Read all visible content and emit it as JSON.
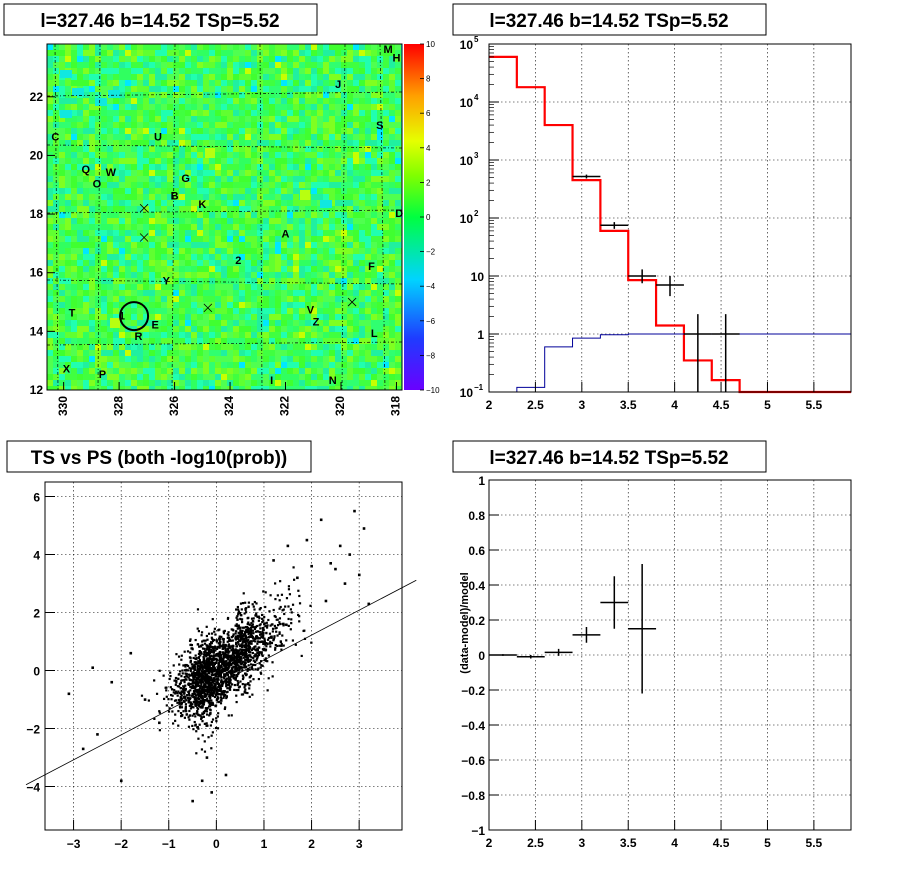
{
  "chart_data": [
    {
      "type": "heatmap",
      "title": "l=327.46 b=14.52 TSp=5.52",
      "xlim": [
        330.6,
        317.8
      ],
      "ylim": [
        12.0,
        23.8
      ],
      "x_ticks": [
        "330",
        "328",
        "326",
        "324",
        "322",
        "320",
        "318"
      ],
      "y_ticks": [
        "12",
        "14",
        "16",
        "18",
        "20",
        "22"
      ],
      "colorbar": {
        "min": -10,
        "max": 10,
        "ticks": [
          "10",
          "8",
          "6",
          "4",
          "2",
          "0",
          "−2",
          "−4",
          "−6",
          "−8",
          "−10"
        ]
      },
      "source_labels": [
        {
          "text": "M",
          "x": 318.3,
          "y": 23.6
        },
        {
          "text": "H",
          "x": 318.0,
          "y": 23.3
        },
        {
          "text": "J",
          "x": 320.1,
          "y": 22.4
        },
        {
          "text": "S",
          "x": 318.6,
          "y": 21.0
        },
        {
          "text": "C",
          "x": 330.3,
          "y": 20.6
        },
        {
          "text": "U",
          "x": 326.6,
          "y": 20.6
        },
        {
          "text": "Q",
          "x": 329.2,
          "y": 19.5
        },
        {
          "text": "W",
          "x": 328.3,
          "y": 19.4
        },
        {
          "text": "G",
          "x": 325.6,
          "y": 19.2
        },
        {
          "text": "O",
          "x": 328.8,
          "y": 19.0
        },
        {
          "text": "B",
          "x": 326.0,
          "y": 18.6
        },
        {
          "text": "K",
          "x": 325.0,
          "y": 18.3
        },
        {
          "text": "D",
          "x": 317.9,
          "y": 18.0
        },
        {
          "text": "A",
          "x": 322.0,
          "y": 17.3
        },
        {
          "text": "2",
          "x": 323.7,
          "y": 16.4
        },
        {
          "text": "F",
          "x": 318.9,
          "y": 16.2
        },
        {
          "text": "Y",
          "x": 326.3,
          "y": 15.7
        },
        {
          "text": "T",
          "x": 329.7,
          "y": 14.6
        },
        {
          "text": "1",
          "x": 327.9,
          "y": 14.5
        },
        {
          "text": "V",
          "x": 321.1,
          "y": 14.7
        },
        {
          "text": "E",
          "x": 326.7,
          "y": 14.2
        },
        {
          "text": "Z",
          "x": 320.9,
          "y": 14.3
        },
        {
          "text": "R",
          "x": 327.3,
          "y": 13.8
        },
        {
          "text": "L",
          "x": 318.8,
          "y": 13.9
        },
        {
          "text": "X",
          "x": 329.9,
          "y": 12.7
        },
        {
          "text": "P",
          "x": 328.6,
          "y": 12.5
        },
        {
          "text": "I",
          "x": 322.5,
          "y": 12.3
        },
        {
          "text": "N",
          "x": 320.3,
          "y": 12.3
        }
      ]
    },
    {
      "type": "line",
      "title": "l=327.46 b=14.52 TSp=5.52",
      "y_scale": "log",
      "xlim": [
        2.0,
        5.9
      ],
      "ylim": [
        0.1,
        100000
      ],
      "x_ticks": [
        "2",
        "2.5",
        "3",
        "3.5",
        "4",
        "4.5",
        "5",
        "5.5"
      ],
      "y_ticks": [
        {
          "value": 100000,
          "base": "10",
          "exp": "5"
        },
        {
          "value": 10000,
          "base": "10",
          "exp": "4"
        },
        {
          "value": 1000,
          "base": "10",
          "exp": "3"
        },
        {
          "value": 100,
          "base": "10",
          "exp": "2"
        },
        {
          "value": 10,
          "base": "10",
          "exp": ""
        },
        {
          "value": 1,
          "base": "1",
          "exp": ""
        },
        {
          "value": 0.1,
          "base": "10",
          "exp": "−1"
        }
      ],
      "series": [
        {
          "style": "step",
          "color": "#ff0000",
          "edges": [
            2.0,
            2.3,
            2.6,
            2.9,
            3.2,
            3.5,
            3.8,
            4.1,
            4.4,
            4.7,
            5.0,
            5.9
          ],
          "values": [
            60000,
            18000,
            4000,
            450,
            60,
            8.5,
            1.4,
            0.35,
            0.16,
            0.1,
            0.1
          ]
        },
        {
          "style": "step",
          "color": "#000099",
          "edges": [
            2.0,
            2.3,
            2.6,
            2.9,
            3.2,
            3.5,
            3.8,
            4.1,
            4.4,
            4.7,
            5.0,
            5.9
          ],
          "values": [
            0.1,
            0.12,
            0.6,
            0.85,
            0.97,
            1.0,
            1.0,
            1.0,
            1.0,
            1.0,
            1.0
          ]
        },
        {
          "style": "errorbar",
          "color": "#000000",
          "points": [
            {
              "x": 3.05,
              "xerr": 0.15,
              "y": 520,
              "ylo": 480,
              "yhi": 560
            },
            {
              "x": 3.35,
              "xerr": 0.15,
              "y": 75,
              "ylo": 65,
              "yhi": 85
            },
            {
              "x": 3.65,
              "xerr": 0.15,
              "y": 10,
              "ylo": 7.5,
              "yhi": 13
            },
            {
              "x": 3.95,
              "xerr": 0.15,
              "y": 7,
              "ylo": 4.5,
              "yhi": 10
            },
            {
              "x": 4.25,
              "xerr": 0.15,
              "y": 1,
              "ylo": 0.1,
              "yhi": 2.2
            },
            {
              "x": 4.55,
              "xerr": 0.15,
              "y": 1,
              "ylo": 0.1,
              "yhi": 2.2
            }
          ]
        }
      ]
    },
    {
      "type": "scatter",
      "title": "TS vs PS (both -log10(prob))",
      "xlim": [
        -3.6,
        3.9
      ],
      "ylim": [
        -5.5,
        6.5
      ],
      "x_ticks": [
        "−3",
        "−2",
        "−1",
        "0",
        "1",
        "2",
        "3"
      ],
      "y_ticks": [
        "−4",
        "−2",
        "0",
        "2",
        "4",
        "6"
      ],
      "fit_line": {
        "slope": 0.86,
        "intercept": -0.5
      },
      "points": [
        [
          2.9,
          5.5
        ],
        [
          2.2,
          5.2
        ],
        [
          3.1,
          4.9
        ],
        [
          2.6,
          4.3
        ],
        [
          2.8,
          4.0
        ],
        [
          1.9,
          4.5
        ],
        [
          2.4,
          3.7
        ],
        [
          3.2,
          2.3
        ],
        [
          3.0,
          3.3
        ],
        [
          1.5,
          4.3
        ],
        [
          2.0,
          3.6
        ],
        [
          2.7,
          3.0
        ],
        [
          1.2,
          3.8
        ],
        [
          -0.5,
          -4.5
        ],
        [
          -0.1,
          -4.2
        ],
        [
          -0.3,
          -3.8
        ],
        [
          -2.0,
          -3.8
        ],
        [
          -2.5,
          -2.2
        ],
        [
          -2.8,
          -2.7
        ],
        [
          -3.1,
          -0.8
        ],
        [
          -2.6,
          0.1
        ],
        [
          -2.2,
          -0.4
        ],
        [
          -1.8,
          0.6
        ],
        [
          -1.5,
          -1.0
        ],
        [
          0.2,
          -3.6
        ],
        [
          -0.2,
          -3.0
        ],
        [
          -1.2,
          -1.8
        ],
        [
          1.7,
          3.2
        ],
        [
          2.3,
          2.4
        ],
        [
          2.5,
          3.5
        ]
      ]
    },
    {
      "type": "line",
      "title": "l=327.46 b=14.52 TSp=5.52",
      "ylabel": "(data-model)/model",
      "xlim": [
        2.0,
        5.9
      ],
      "ylim": [
        -1,
        1
      ],
      "x_ticks": [
        "2",
        "2.5",
        "3",
        "3.5",
        "4",
        "4.5",
        "5",
        "5.5"
      ],
      "y_ticks": [
        "−1",
        "−0.8",
        "−0.6",
        "−0.4",
        "−0.2",
        "0",
        "0.2",
        "0.4",
        "0.6",
        "0.8",
        "1"
      ],
      "points": [
        {
          "x": 2.15,
          "xerr": 0.15,
          "y": 0.0,
          "yerr": 0.005
        },
        {
          "x": 2.45,
          "xerr": 0.15,
          "y": -0.01,
          "yerr": 0.01
        },
        {
          "x": 2.75,
          "xerr": 0.15,
          "y": 0.015,
          "yerr": 0.02
        },
        {
          "x": 3.05,
          "xerr": 0.15,
          "y": 0.115,
          "yerr": 0.045
        },
        {
          "x": 3.35,
          "xerr": 0.15,
          "y": 0.3,
          "yerr": 0.15
        },
        {
          "x": 3.65,
          "xerr": 0.15,
          "y": 0.15,
          "yerr": 0.37
        }
      ]
    }
  ]
}
